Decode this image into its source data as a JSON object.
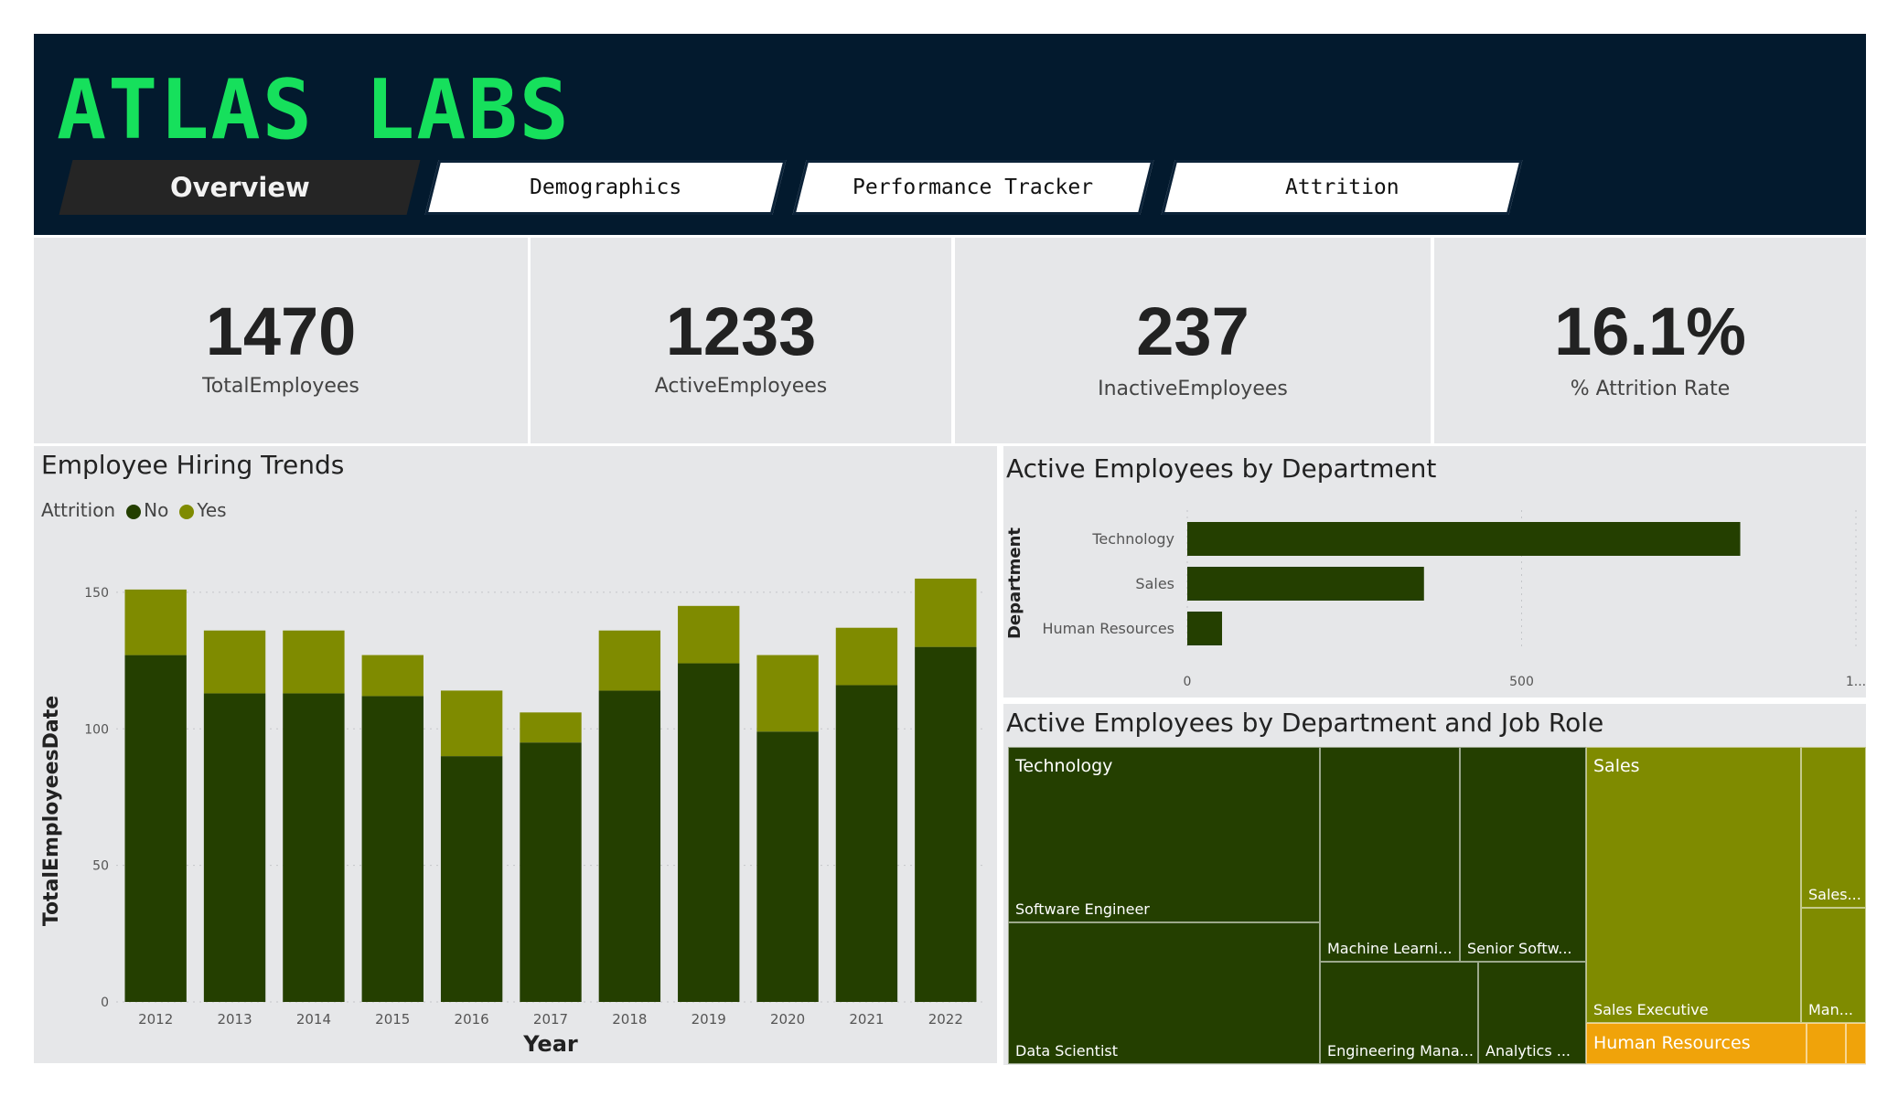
{
  "brand": "ATLAS  LABS",
  "tabs": [
    {
      "label": "Overview",
      "active": true
    },
    {
      "label": "Demographics",
      "active": false
    },
    {
      "label": "Performance Tracker",
      "active": false
    },
    {
      "label": "Attrition",
      "active": false
    }
  ],
  "kpis": [
    {
      "value": "1470",
      "label": "TotalEmployees"
    },
    {
      "value": "1233",
      "label": "ActiveEmployees"
    },
    {
      "value": "237",
      "label": "InactiveEmployees"
    },
    {
      "value": "16.1%",
      "label": "% Attrition Rate"
    }
  ],
  "colors": {
    "no": "#243f00",
    "yes": "#7f8b00",
    "header": "#031a2e",
    "brand": "#16e05c",
    "hr": "#f0a30a"
  },
  "chart_data": [
    {
      "type": "bar",
      "stacked": true,
      "title": "Employee Hiring Trends",
      "legend_title": "Attrition",
      "categories": [
        "2012",
        "2013",
        "2014",
        "2015",
        "2016",
        "2017",
        "2018",
        "2019",
        "2020",
        "2021",
        "2022"
      ],
      "series": [
        {
          "name": "No",
          "values": [
            127,
            113,
            113,
            112,
            90,
            95,
            114,
            124,
            99,
            116,
            130
          ]
        },
        {
          "name": "Yes",
          "values": [
            24,
            23,
            23,
            15,
            24,
            11,
            22,
            21,
            28,
            21,
            25
          ]
        }
      ],
      "xlabel": "Year",
      "ylabel": "TotalEmployeesDate",
      "ylim": [
        0,
        160
      ],
      "yticks": [
        "0",
        "50",
        "100",
        "150"
      ],
      "legend_position": "top-left",
      "grid": true
    },
    {
      "type": "bar",
      "orientation": "horizontal",
      "title": "Active Employees by Department",
      "ylabel": "Department",
      "categories": [
        "Technology",
        "Sales",
        "Human Resources"
      ],
      "values": [
        827,
        354,
        52
      ],
      "xlim": [
        0,
        1000
      ],
      "xticks": [
        "0",
        "500",
        "1..."
      ]
    },
    {
      "type": "treemap",
      "title": "Active Employees by Department and Job Role",
      "groups": [
        {
          "name": "Technology",
          "items": [
            "Software Engineer",
            "Data Scientist",
            "Machine Learni...",
            "Senior Softw...",
            "Engineering Mana...",
            "Analytics ..."
          ]
        },
        {
          "name": "Sales",
          "items": [
            "Sales Executive",
            "Sales...",
            "Man..."
          ]
        },
        {
          "name": "Human Resources",
          "items": []
        }
      ]
    }
  ]
}
